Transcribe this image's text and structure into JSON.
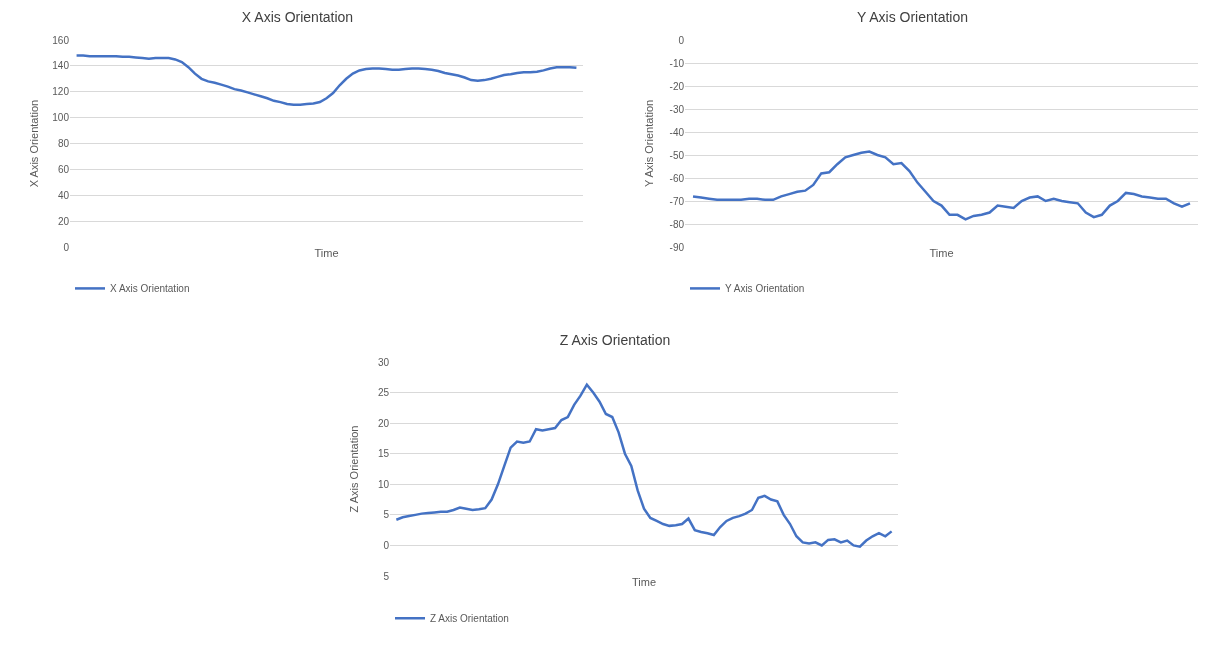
{
  "chart_data": [
    {
      "type": "line",
      "title": "X Axis Orientation",
      "xlabel": "Time",
      "ylabel": "X Axis Orientation",
      "ylim": [
        0,
        160
      ],
      "yticks": [
        0,
        20,
        40,
        60,
        80,
        100,
        120,
        140,
        160
      ],
      "grid": "y",
      "legend": "bottom left",
      "tick_labels": "y",
      "marker": "none",
      "line_style": "solid",
      "categories": [
        null,
        null,
        null,
        null,
        null,
        null,
        null,
        null,
        null,
        null,
        null,
        null,
        null,
        null,
        null,
        null,
        null,
        null,
        null,
        null,
        null,
        null,
        null,
        null,
        null,
        null,
        null,
        null,
        null,
        null,
        null,
        null,
        null,
        null,
        null,
        null,
        null,
        null,
        null,
        null,
        null,
        null,
        null,
        null,
        null,
        null,
        null,
        null,
        null,
        null,
        null,
        null,
        null,
        null,
        null,
        null,
        null,
        null,
        null,
        null,
        null,
        null,
        null,
        null,
        null,
        null,
        null,
        null,
        null,
        null,
        null,
        null,
        null,
        null,
        null,
        null,
        null
      ],
      "series": [
        {
          "name": "X Axis Orientation",
          "color": "#4472c4",
          "values": [
            148,
            148,
            147.5,
            147.5,
            147.5,
            147.5,
            147.5,
            147,
            147,
            146.5,
            146,
            145.5,
            146,
            146,
            146,
            145,
            143,
            139,
            134,
            130,
            128,
            127,
            125.5,
            124,
            122,
            121,
            119.5,
            118,
            116.5,
            115,
            113,
            112,
            110.5,
            110,
            110,
            110.5,
            111,
            112,
            115,
            119,
            125,
            130,
            134,
            136.5,
            137.5,
            138,
            138,
            137.5,
            137,
            137,
            137.5,
            138,
            138,
            137.5,
            137,
            136,
            134.5,
            133.5,
            132.5,
            131,
            129,
            128.5,
            129,
            130,
            131.5,
            133,
            133.5,
            134.5,
            135,
            135,
            135.5,
            136.5,
            138,
            139,
            139,
            139,
            138.5
          ]
        }
      ]
    },
    {
      "type": "line",
      "title": "Y Axis Orientation",
      "xlabel": "Time",
      "ylabel": "Y Axis Orientation",
      "ylim": [
        -90,
        0
      ],
      "yticks": [
        -90,
        -80,
        -70,
        -60,
        -50,
        -40,
        -30,
        -20,
        -10,
        0
      ],
      "grid": "y",
      "legend": "bottom left",
      "tick_labels": "y",
      "marker": "none",
      "line_style": "solid",
      "categories": [
        null,
        null,
        null,
        null,
        null,
        null,
        null,
        null,
        null,
        null,
        null,
        null,
        null,
        null,
        null,
        null,
        null,
        null,
        null,
        null,
        null,
        null,
        null,
        null,
        null,
        null,
        null,
        null,
        null,
        null,
        null,
        null,
        null,
        null,
        null,
        null,
        null,
        null,
        null,
        null,
        null,
        null,
        null,
        null,
        null,
        null,
        null,
        null,
        null,
        null,
        null,
        null,
        null,
        null,
        null,
        null,
        null,
        null,
        null,
        null,
        null,
        null,
        null
      ],
      "series": [
        {
          "name": "Y Axis Orientation",
          "color": "#4472c4",
          "values": [
            -68,
            -68.5,
            -69,
            -69.5,
            -69.5,
            -69.5,
            -69.5,
            -69,
            -69,
            -69.5,
            -69.5,
            -68,
            -67,
            -66,
            -65.5,
            -63,
            -58,
            -57.5,
            -54,
            -51,
            -50,
            -49,
            -48.5,
            -50,
            -51,
            -54,
            -53.5,
            -57,
            -62,
            -66,
            -70,
            -72,
            -76,
            -76,
            -78,
            -76.5,
            -76,
            -75,
            -72,
            -72.5,
            -73,
            -70,
            -68.5,
            -68,
            -70,
            -69,
            -70,
            -70.5,
            -71,
            -75,
            -77,
            -76,
            -72,
            -70,
            -66.5,
            -67,
            -68,
            -68.5,
            -69,
            -69,
            -71,
            -72.5,
            -71
          ]
        }
      ]
    },
    {
      "type": "line",
      "title": "Z Axis Orientation",
      "xlabel": "Time",
      "ylabel": "Z Axis Orientation",
      "ylim": [
        -5,
        30
      ],
      "yticks": [
        {
          "value": -5,
          "label": "5"
        },
        0,
        5,
        10,
        15,
        20,
        25,
        30
      ],
      "grid": "y",
      "legend": "bottom left",
      "tick_labels": "y",
      "marker": "none",
      "line_style": "solid",
      "categories": [
        null,
        null,
        null,
        null,
        null,
        null,
        null,
        null,
        null,
        null,
        null,
        null,
        null,
        null,
        null,
        null,
        null,
        null,
        null,
        null,
        null,
        null,
        null,
        null,
        null,
        null,
        null,
        null,
        null,
        null,
        null,
        null,
        null,
        null,
        null,
        null,
        null,
        null,
        null,
        null,
        null,
        null,
        null,
        null,
        null,
        null,
        null,
        null,
        null,
        null,
        null,
        null,
        null,
        null,
        null,
        null,
        null,
        null,
        null,
        null,
        null,
        null,
        null,
        null,
        null,
        null,
        null,
        null,
        null,
        null,
        null,
        null,
        null,
        null,
        null,
        null,
        null,
        null,
        null
      ],
      "series": [
        {
          "name": "Z Axis Orientation",
          "color": "#4472c4",
          "values": [
            4.2,
            4.6,
            4.8,
            5,
            5.2,
            5.3,
            5.4,
            5.5,
            5.5,
            5.8,
            6.2,
            6,
            5.8,
            5.9,
            6.1,
            7.5,
            10,
            13,
            16,
            17,
            16.8,
            17,
            19,
            18.8,
            19,
            19.2,
            20.5,
            21,
            23,
            24.5,
            26.3,
            25,
            23.5,
            21.5,
            21,
            18.5,
            15,
            13,
            9,
            6,
            4.5,
            4,
            3.5,
            3.2,
            3.3,
            3.5,
            4.4,
            2.5,
            2.2,
            2,
            1.7,
            3,
            4,
            4.5,
            4.8,
            5.2,
            5.8,
            7.8,
            8.1,
            7.5,
            7.2,
            5,
            3.5,
            1.5,
            0.5,
            0.3,
            0.5,
            0,
            0.9,
            1,
            0.5,
            0.8,
            0,
            -0.2,
            0.8,
            1.5,
            2,
            1.5,
            2.3
          ]
        }
      ]
    }
  ]
}
